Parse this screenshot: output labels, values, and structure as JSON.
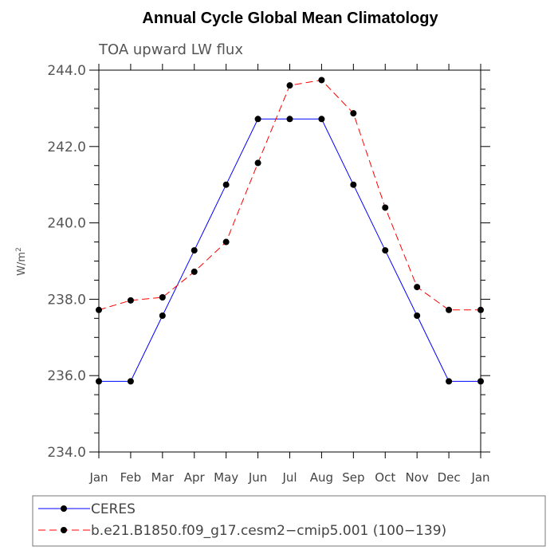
{
  "chart_data": {
    "type": "line",
    "title": "Annual Cycle Global Mean Climatology",
    "subtitle": "TOA upward LW flux",
    "ylabel_base": "W/m",
    "ylabel_sup": "2",
    "ylim": [
      234.0,
      244.0
    ],
    "y_ticks": [
      "234.0",
      "236.0",
      "238.0",
      "240.0",
      "242.0",
      "244.0"
    ],
    "categories": [
      "Jan",
      "Feb",
      "Mar",
      "Apr",
      "May",
      "Jun",
      "Jul",
      "Aug",
      "Sep",
      "Oct",
      "Nov",
      "Dec",
      "Jan"
    ],
    "series": [
      {
        "name": "CERES",
        "color": "#0000ff",
        "dash": "solid",
        "values": [
          235.85,
          235.85,
          237.57,
          239.28,
          241.0,
          242.72,
          242.72,
          242.72,
          241.0,
          239.28,
          237.57,
          235.85,
          235.85
        ]
      },
      {
        "name": "b.e21.B1850.f09_g17.cesm2−cmip5.001 (100−139)",
        "color": "#ff0000",
        "dash": "dashed",
        "values": [
          237.72,
          237.97,
          238.05,
          238.72,
          239.5,
          241.57,
          243.6,
          243.74,
          242.87,
          240.4,
          238.32,
          237.72,
          237.72
        ]
      }
    ],
    "grid": false,
    "legend_position": "bottom"
  }
}
